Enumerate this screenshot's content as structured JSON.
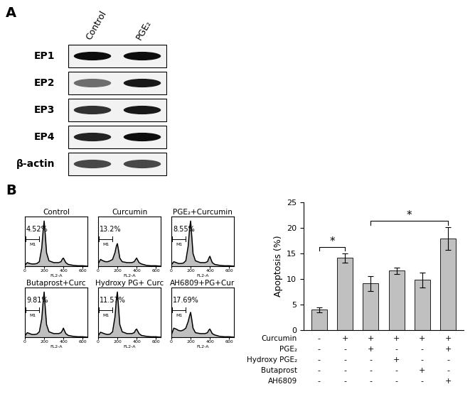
{
  "panel_labels": [
    "A",
    "B"
  ],
  "blot": {
    "lanes": [
      "Control",
      "PGE₂"
    ],
    "rows": [
      {
        "label": "EP1",
        "intensity": [
          0.95,
          0.95
        ]
      },
      {
        "label": "EP2",
        "intensity": [
          0.55,
          0.9
        ]
      },
      {
        "label": "EP3",
        "intensity": [
          0.8,
          0.9
        ]
      },
      {
        "label": "EP4",
        "intensity": [
          0.85,
          0.95
        ]
      },
      {
        "label": "β-actin",
        "intensity": [
          0.7,
          0.7
        ]
      }
    ]
  },
  "histograms": {
    "x_label": "FL2-A",
    "gate_label": "M1",
    "gate_range": [
      10,
      150
    ],
    "xlim": [
      0,
      650
    ],
    "xticks": [
      0,
      200,
      400,
      600
    ],
    "ylim": [
      0,
      110
    ],
    "tick_labels": "x",
    "x": [
      0,
      25,
      50,
      75,
      100,
      125,
      150,
      175,
      190,
      200,
      210,
      225,
      250,
      300,
      350,
      375,
      390,
      400,
      410,
      425,
      450,
      500,
      550,
      600,
      650
    ],
    "panels": [
      {
        "title": "Control",
        "percent_label": "4.52%",
        "values": [
          2,
          8,
          6,
          5,
          5,
          6,
          10,
          40,
          80,
          100,
          75,
          30,
          12,
          8,
          8,
          10,
          16,
          18,
          14,
          8,
          4,
          2,
          1,
          1,
          0
        ]
      },
      {
        "title": "Curcumin",
        "percent_label": "13.2%",
        "values": [
          5,
          15,
          12,
          10,
          10,
          12,
          15,
          30,
          45,
          50,
          38,
          18,
          10,
          8,
          8,
          10,
          15,
          18,
          14,
          8,
          5,
          2,
          1,
          1,
          0
        ]
      },
      {
        "title": "PGE₂+Curcumin",
        "percent_label": "8.55%",
        "values": [
          3,
          10,
          8,
          6,
          6,
          7,
          12,
          45,
          85,
          100,
          72,
          28,
          12,
          8,
          8,
          10,
          18,
          22,
          16,
          8,
          4,
          2,
          1,
          1,
          0
        ]
      },
      {
        "title": "Butaprost+Curc",
        "percent_label": "9.81%",
        "values": [
          3,
          10,
          8,
          6,
          6,
          7,
          12,
          40,
          80,
          100,
          70,
          28,
          12,
          8,
          8,
          10,
          15,
          20,
          15,
          8,
          4,
          2,
          1,
          1,
          0
        ]
      },
      {
        "title": "Hydroxy PG+ Curc",
        "percent_label": "11.57%",
        "values": [
          3,
          11,
          9,
          7,
          6,
          7,
          12,
          45,
          85,
          100,
          72,
          28,
          12,
          8,
          8,
          10,
          16,
          18,
          14,
          8,
          4,
          2,
          1,
          1,
          0
        ]
      },
      {
        "title": "AH6809+PG+Cur",
        "percent_label": "17.69%",
        "values": [
          5,
          20,
          18,
          15,
          14,
          16,
          20,
          35,
          48,
          55,
          42,
          20,
          10,
          8,
          8,
          10,
          16,
          18,
          14,
          8,
          5,
          2,
          1,
          1,
          0
        ]
      }
    ]
  },
  "chart_data": {
    "type": "bar",
    "y_label": "Apoptosis (%)",
    "categories": [
      null,
      null,
      null,
      null,
      null,
      null
    ],
    "values": [
      4.0,
      14.1,
      9.1,
      11.6,
      9.8,
      17.9
    ],
    "errors": [
      0.5,
      0.9,
      1.5,
      0.6,
      1.5,
      2.2
    ],
    "color": "#c0c0c0",
    "ylim": [
      0,
      25
    ],
    "yticks": [
      0,
      5,
      10,
      15,
      20,
      25
    ],
    "table": {
      "rows": [
        {
          "label": "Curcumin",
          "marks": [
            "-",
            "+",
            "+",
            "+",
            "+",
            "+"
          ]
        },
        {
          "label": "PGE₂",
          "marks": [
            "-",
            "-",
            "+",
            "-",
            "-",
            "+"
          ]
        },
        {
          "label": "Hydroxy PGE₂",
          "marks": [
            "-",
            "-",
            "-",
            "+",
            "-",
            "-"
          ]
        },
        {
          "label": "Butaprost",
          "marks": [
            "-",
            "-",
            "-",
            "-",
            "+",
            "-"
          ]
        },
        {
          "label": "AH6809",
          "marks": [
            "-",
            "-",
            "-",
            "-",
            "-",
            "+"
          ]
        }
      ]
    },
    "significance": [
      {
        "from": 0,
        "to": 1,
        "label": "*"
      },
      {
        "from": 2,
        "to": 5,
        "label": "*"
      }
    ]
  }
}
